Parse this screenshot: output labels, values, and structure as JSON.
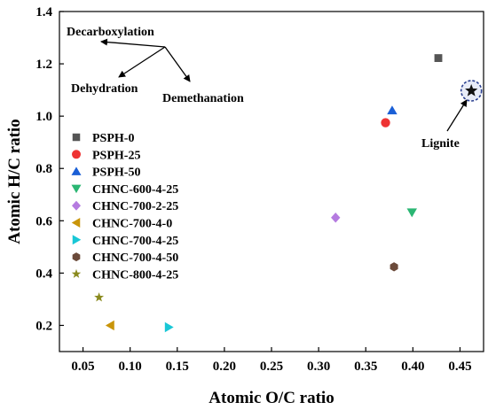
{
  "chart_data": {
    "type": "scatter",
    "xlabel": "Atomic O/C ratio",
    "ylabel": "Atomic H/C ratio",
    "xlim": [
      0.025,
      0.475
    ],
    "ylim": [
      0.1,
      1.4
    ],
    "xticks": [
      "0.05",
      "0.10",
      "0.15",
      "0.20",
      "0.25",
      "0.30",
      "0.35",
      "0.40",
      "0.45"
    ],
    "xtick_values": [
      0.05,
      0.1,
      0.15,
      0.2,
      0.25,
      0.3,
      0.35,
      0.4,
      0.45
    ],
    "yticks": [
      "0.2",
      "0.4",
      "0.6",
      "0.8",
      "1.0",
      "1.2",
      "1.4"
    ],
    "ytick_values": [
      0.2,
      0.4,
      0.6,
      0.8,
      1.0,
      1.2,
      1.4
    ],
    "legend_position": "left-middle",
    "series": [
      {
        "name": "PSPH-0",
        "marker": "square",
        "color": "#555555",
        "x": 0.427,
        "y": 1.222
      },
      {
        "name": "PSPH-25",
        "marker": "circle",
        "color": "#ee3333",
        "x": 0.371,
        "y": 0.975
      },
      {
        "name": "PSPH-50",
        "marker": "triangle-up",
        "color": "#1a5fd6",
        "x": 0.378,
        "y": 1.022
      },
      {
        "name": "CHNC-600-4-25",
        "marker": "triangle-down",
        "color": "#2bb673",
        "x": 0.399,
        "y": 0.632
      },
      {
        "name": "CHNC-700-2-25",
        "marker": "diamond",
        "color": "#b57be0",
        "x": 0.318,
        "y": 0.612
      },
      {
        "name": "CHNC-700-4-0",
        "marker": "triangle-left",
        "color": "#c9950a",
        "x": 0.079,
        "y": 0.2
      },
      {
        "name": "CHNC-700-4-25",
        "marker": "triangle-right",
        "color": "#19c7d6",
        "x": 0.141,
        "y": 0.193
      },
      {
        "name": "CHNC-700-4-50",
        "marker": "hexagon",
        "color": "#6b4a3a",
        "x": 0.38,
        "y": 0.424
      },
      {
        "name": "CHNC-800-4-25",
        "marker": "star",
        "color": "#8a8a1e",
        "x": 0.067,
        "y": 0.307
      }
    ],
    "reference_point": {
      "label": "Lignite",
      "marker": "star-circled",
      "color": "#111111",
      "ring_color": "#2a3f8f",
      "x": 0.462,
      "y": 1.097
    },
    "annotations": {
      "decarboxylation": "Decarboxylation",
      "dehydration": "Dehydration",
      "demethanation": "Demethanation",
      "lignite": "Lignite"
    },
    "grid": false
  }
}
